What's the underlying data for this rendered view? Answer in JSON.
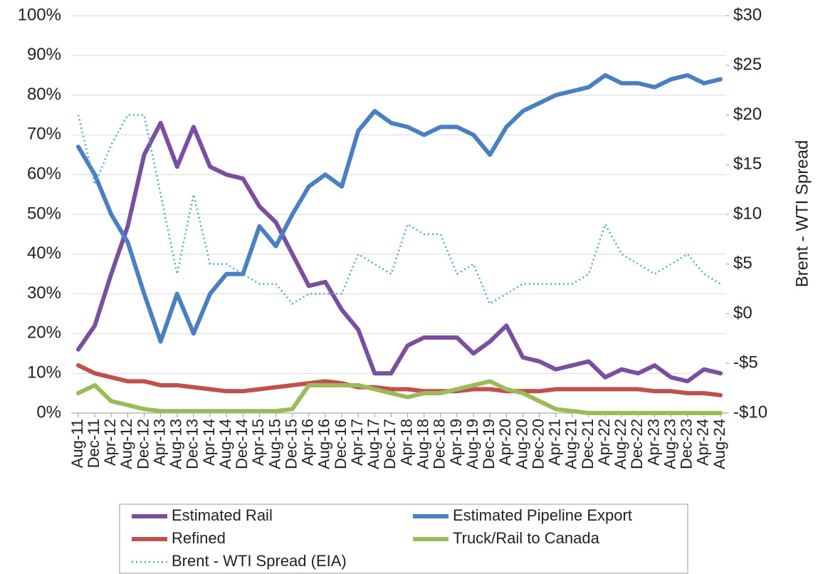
{
  "chart_data": {
    "type": "line",
    "y2label": "Brent - WTI Spread",
    "categories": [
      "Aug-11",
      "Dec-11",
      "Apr-12",
      "Aug-12",
      "Dec-12",
      "Apr-13",
      "Aug-13",
      "Dec-13",
      "Apr-14",
      "Aug-14",
      "Dec-14",
      "Apr-15",
      "Aug-15",
      "Dec-15",
      "Apr-16",
      "Aug-16",
      "Dec-16",
      "Apr-17",
      "Aug-17",
      "Dec-17",
      "Apr-18",
      "Aug-18",
      "Dec-18",
      "Apr-19",
      "Aug-19",
      "Dec-19",
      "Apr-20",
      "Aug-20",
      "Dec-20",
      "Apr-21",
      "Aug-21",
      "Dec-21",
      "Apr-22",
      "Aug-22",
      "Dec-22",
      "Apr-23",
      "Aug-23",
      "Dec-23",
      "Apr-24",
      "Aug-24"
    ],
    "series": [
      {
        "name": "Estimated Rail",
        "color": "#7b4fa0",
        "values": [
          16,
          22,
          35,
          47,
          65,
          73,
          62,
          72,
          62,
          60,
          59,
          52,
          48,
          40,
          32,
          33,
          26,
          21,
          10,
          10,
          17,
          19,
          19,
          19,
          15,
          18,
          22,
          14,
          13,
          11,
          12,
          13,
          9,
          11,
          10,
          12,
          9,
          8,
          11,
          10
        ]
      },
      {
        "name": "Estimated Pipeline Export",
        "color": "#4a7fc1",
        "values": [
          67,
          60,
          50,
          43,
          30,
          18,
          30,
          20,
          30,
          35,
          35,
          47,
          42,
          50,
          57,
          60,
          57,
          71,
          76,
          73,
          72,
          70,
          72,
          72,
          70,
          65,
          72,
          76,
          78,
          80,
          81,
          82,
          85,
          83,
          83,
          82,
          84,
          85,
          83,
          84
        ]
      },
      {
        "name": "Refined",
        "color": "#c0504d",
        "values": [
          12,
          10,
          9,
          8,
          8,
          7,
          7,
          6.5,
          6,
          5.5,
          5.5,
          6,
          6.5,
          7,
          7.5,
          8,
          7.5,
          6.5,
          6.5,
          6,
          6,
          5.5,
          5.5,
          5.5,
          6,
          6,
          5.5,
          5.5,
          5.5,
          6,
          6,
          6,
          6,
          6,
          6,
          5.5,
          5.5,
          5,
          5,
          4.5
        ]
      },
      {
        "name": "Truck/Rail to Canada",
        "color": "#9bbb59",
        "values": [
          5,
          7,
          3,
          2,
          1,
          0.5,
          0.5,
          0.5,
          0.5,
          0.5,
          0.5,
          0.5,
          0.5,
          1,
          7,
          7,
          7,
          7,
          6,
          5,
          4,
          5,
          5,
          6,
          7,
          8,
          6,
          5,
          3,
          1,
          0.5,
          0,
          0,
          0,
          0,
          0,
          0,
          0,
          0,
          0
        ]
      },
      {
        "name": "Brent - WTI Spread (EIA)",
        "color": "#4bacc6",
        "dashed": true,
        "axis": "y2",
        "values": [
          20,
          13,
          17,
          20,
          20,
          12,
          4,
          12,
          5,
          5,
          4,
          3,
          3,
          1,
          2,
          2,
          2,
          6,
          5,
          4,
          9,
          8,
          8,
          4,
          5,
          1,
          2,
          3,
          3,
          3,
          3,
          4,
          9,
          6,
          5,
          4,
          5,
          6,
          4,
          3
        ]
      }
    ],
    "ylim": [
      0,
      100
    ],
    "yticks": [
      {
        "value": 0,
        "label": "0%"
      },
      {
        "value": 10,
        "label": "10%"
      },
      {
        "value": 20,
        "label": "20%"
      },
      {
        "value": 30,
        "label": "30%"
      },
      {
        "value": 40,
        "label": "40%"
      },
      {
        "value": 50,
        "label": "50%"
      },
      {
        "value": 60,
        "label": "60%"
      },
      {
        "value": 70,
        "label": "70%"
      },
      {
        "value": 80,
        "label": "80%"
      },
      {
        "value": 90,
        "label": "90%"
      },
      {
        "value": 100,
        "label": "100%"
      }
    ],
    "y2lim": [
      -10,
      30
    ],
    "y2ticks": [
      {
        "value": -10,
        "label": "-$10"
      },
      {
        "value": -5,
        "label": "-$5"
      },
      {
        "value": 0,
        "label": "$0"
      },
      {
        "value": 5,
        "label": "$5"
      },
      {
        "value": 10,
        "label": "$10"
      },
      {
        "value": 15,
        "label": "$15"
      },
      {
        "value": 20,
        "label": "$20"
      },
      {
        "value": 25,
        "label": "$25"
      },
      {
        "value": 30,
        "label": "$30"
      }
    ],
    "grid": true
  }
}
